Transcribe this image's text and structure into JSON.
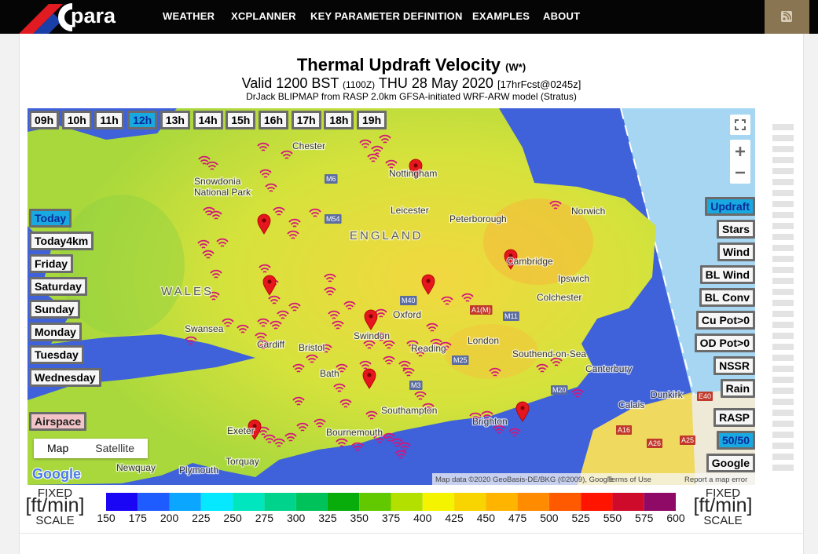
{
  "nav": {
    "logo": "para",
    "items": [
      "WEATHER",
      "XCPLANNER",
      "KEY PARAMETER DEFINITION",
      "EXAMPLES",
      "ABOUT"
    ]
  },
  "header": {
    "title": "Thermal Updraft Velocity",
    "title_unit": "(W*)",
    "valid": "Valid 1200 BST",
    "zulu": "(1100Z)",
    "date": "THU 28 May 2020",
    "forecast": "[17hrFcst@0245z]",
    "model": "DrJack BLIPMAP from RASP 2.0km GFSA-initiated WRF-ARW model (Stratus)"
  },
  "hours": {
    "labels": [
      "09h",
      "10h",
      "11h",
      "12h",
      "13h",
      "14h",
      "15h",
      "16h",
      "17h",
      "18h",
      "19h"
    ],
    "selected": 3
  },
  "days": {
    "labels": [
      "Today",
      "Today4km",
      "Friday",
      "Saturday",
      "Sunday",
      "Monday",
      "Tuesday",
      "Wednesday"
    ],
    "selected": 0
  },
  "airspace": "Airspace",
  "map_types": [
    "Map",
    "Satellite"
  ],
  "params": {
    "labels": [
      "Updraft",
      "Stars",
      "Wind",
      "BL Wind",
      "BL Conv",
      "Cu Pot>0",
      "OD Pot>0",
      "NSSR",
      "Rain"
    ],
    "selected": 0
  },
  "sources": {
    "labels": [
      "RASP",
      "50/50",
      "Google"
    ],
    "selected": 1
  },
  "map": {
    "places": [
      "Chester",
      "Nottingham",
      "Snowdonia",
      "National Park",
      "Leicester",
      "Peterborough",
      "Norwich",
      "ENGLAND",
      "Cambridge",
      "Ipswich",
      "Colchester",
      "WALES",
      "Oxford",
      "Swansea",
      "Cardiff",
      "Bristol",
      "Swindon",
      "Reading",
      "London",
      "Southend-on-Sea",
      "Canterbury",
      "Bath",
      "Southampton",
      "Brighton",
      "Bournemouth",
      "Exeter",
      "Torquay",
      "Plymouth",
      "Newquay",
      "Calais",
      "Dunkirk"
    ],
    "roads": [
      "M6",
      "M54",
      "M40",
      "M25",
      "M11",
      "M3",
      "M20",
      "A1(M)",
      "A16",
      "A26",
      "A25",
      "E40"
    ],
    "logo": "Google",
    "attribution": [
      "Map data ©2020 GeoBasis-DE/BKG (©2009), Google",
      "Terms of Use",
      "Report a map error"
    ]
  },
  "scale": {
    "caption": [
      "FIXED",
      "[ft/min]",
      "SCALE"
    ],
    "values": [
      150,
      175,
      200,
      225,
      250,
      275,
      300,
      325,
      350,
      375,
      400,
      425,
      450,
      475,
      500,
      525,
      550,
      575,
      600
    ],
    "colors": [
      "#1a06f5",
      "#1f5cff",
      "#0aa6ff",
      "#05e8ff",
      "#00e6bf",
      "#00d48c",
      "#00c25a",
      "#08ad0c",
      "#62c800",
      "#b4e000",
      "#f4f400",
      "#f8d400",
      "#ffb400",
      "#ff8c00",
      "#ff5a00",
      "#ff1400",
      "#cf0b2c",
      "#8f0a66"
    ]
  }
}
